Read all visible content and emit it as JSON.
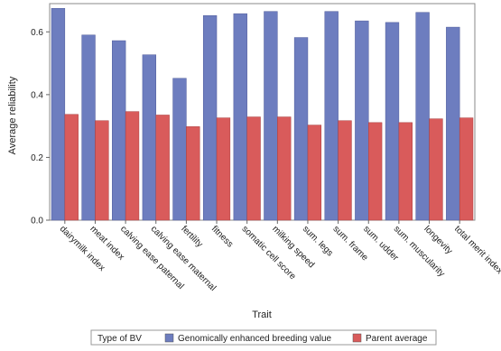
{
  "chart_data": {
    "type": "bar",
    "title": "",
    "xlabel": "Trait",
    "ylabel": "Average reliability",
    "ylim": [
      0,
      0.69
    ],
    "yticks": [
      0.0,
      0.2,
      0.4,
      0.6
    ],
    "ytick_labels": [
      "0.0",
      "0.2",
      "0.4",
      "0.6"
    ],
    "grid": false,
    "legend_position": "bottom",
    "legend_title": "Type of BV",
    "categories": [
      "dairymilk index",
      "meat index",
      "calving ease paternal",
      "calving ease maternal",
      "fertility",
      "fitness",
      "somatic cell score",
      "milking speed",
      "sum. legs",
      "sum. frame",
      "sum. udder",
      "sum. muscularity",
      "longevity",
      "total merit index"
    ],
    "series": [
      {
        "name": "Genomically enhanced breeding value",
        "color": "#6d7dbf",
        "values": [
          0.675,
          0.59,
          0.572,
          0.527,
          0.452,
          0.652,
          0.658,
          0.665,
          0.582,
          0.665,
          0.635,
          0.63,
          0.662,
          0.615
        ]
      },
      {
        "name": "Parent average",
        "color": "#d95b5b",
        "values": [
          0.337,
          0.317,
          0.346,
          0.335,
          0.298,
          0.326,
          0.329,
          0.329,
          0.303,
          0.317,
          0.311,
          0.311,
          0.323,
          0.326
        ]
      }
    ]
  }
}
